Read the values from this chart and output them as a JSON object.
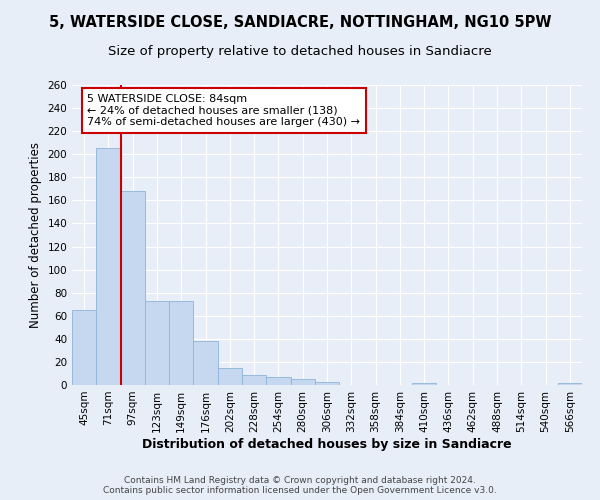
{
  "title": "5, WATERSIDE CLOSE, SANDIACRE, NOTTINGHAM, NG10 5PW",
  "subtitle": "Size of property relative to detached houses in Sandiacre",
  "xlabel": "Distribution of detached houses by size in Sandiacre",
  "ylabel": "Number of detached properties",
  "bin_labels": [
    "45sqm",
    "71sqm",
    "97sqm",
    "123sqm",
    "149sqm",
    "176sqm",
    "202sqm",
    "228sqm",
    "254sqm",
    "280sqm",
    "306sqm",
    "332sqm",
    "358sqm",
    "384sqm",
    "410sqm",
    "436sqm",
    "462sqm",
    "488sqm",
    "514sqm",
    "540sqm",
    "566sqm"
  ],
  "bar_values": [
    65,
    205,
    168,
    73,
    73,
    38,
    15,
    9,
    7,
    5,
    3,
    0,
    0,
    0,
    2,
    0,
    0,
    0,
    0,
    0,
    2
  ],
  "bar_color": "#c5d8f0",
  "bar_edge_color": "#8cb4d8",
  "bar_width": 1.0,
  "ylim": [
    0,
    260
  ],
  "yticks": [
    0,
    20,
    40,
    60,
    80,
    100,
    120,
    140,
    160,
    180,
    200,
    220,
    240,
    260
  ],
  "vline_x": 1.5,
  "vline_color": "#cc0000",
  "annotation_text": "5 WATERSIDE CLOSE: 84sqm\n← 24% of detached houses are smaller (138)\n74% of semi-detached houses are larger (430) →",
  "footer_text": "Contains HM Land Registry data © Crown copyright and database right 2024.\nContains public sector information licensed under the Open Government Licence v3.0.",
  "bg_color": "#e8eef8",
  "plot_bg_color": "#e8eef8",
  "grid_color": "#ffffff",
  "title_fontsize": 10.5,
  "subtitle_fontsize": 9.5,
  "ylabel_fontsize": 8.5,
  "xlabel_fontsize": 9,
  "tick_fontsize": 7.5,
  "annotation_fontsize": 8,
  "footer_fontsize": 6.5
}
